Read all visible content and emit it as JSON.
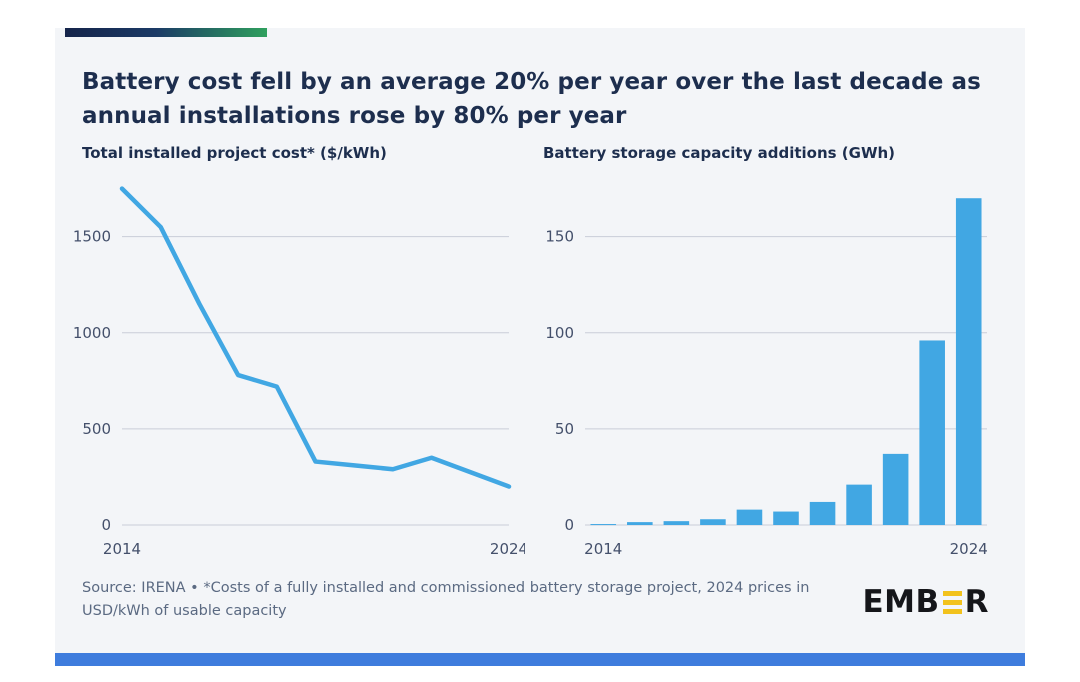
{
  "header": {
    "title_line1": "Battery cost fell by an average 20% per year over the last decade as",
    "title_line2": "annual installations rose by 80% per year"
  },
  "footer": {
    "source_line1": "Source: IRENA • *Costs of a fully installed and commissioned battery storage project, 2024 prices in",
    "source_line2": "USD/kWh of usable capacity",
    "logo_prefix": "EMB",
    "logo_suffix": "R",
    "logo_full": "EMBER"
  },
  "colors": {
    "navy": "#1d2e4e",
    "accent_blue": "#41a7e3",
    "grid": "#c9cdd8",
    "axis_text": "#44506b",
    "footer_bar_blue": "#3e7cdd",
    "logo_gold": "#f2c21c",
    "accent_gradient_start": "#15244a",
    "accent_gradient_end": "#2fa05e"
  },
  "chart_data": [
    {
      "type": "line",
      "title": "Total installed project cost* ($/kWh)",
      "x": [
        2014,
        2015,
        2016,
        2017,
        2018,
        2019,
        2020,
        2021,
        2022,
        2023,
        2024
      ],
      "values": [
        1750,
        1550,
        1150,
        780,
        720,
        330,
        310,
        290,
        350,
        275,
        200
      ],
      "ylim": [
        0,
        1800
      ],
      "yticks": [
        0,
        500,
        1000,
        1500
      ],
      "xtick_labels": [
        "2014",
        "2024"
      ],
      "grid": true,
      "legend": "none"
    },
    {
      "type": "bar",
      "title": "Battery storage capacity additions (GWh)",
      "x": [
        2014,
        2015,
        2016,
        2017,
        2018,
        2019,
        2020,
        2021,
        2022,
        2023,
        2024
      ],
      "values": [
        0.5,
        1.5,
        2,
        3,
        8,
        7,
        12,
        21,
        37,
        96,
        170
      ],
      "ylim": [
        0,
        180
      ],
      "yticks": [
        0,
        50,
        100,
        150
      ],
      "xtick_labels": [
        "2014",
        "2024"
      ],
      "grid": true,
      "legend": "none"
    }
  ]
}
